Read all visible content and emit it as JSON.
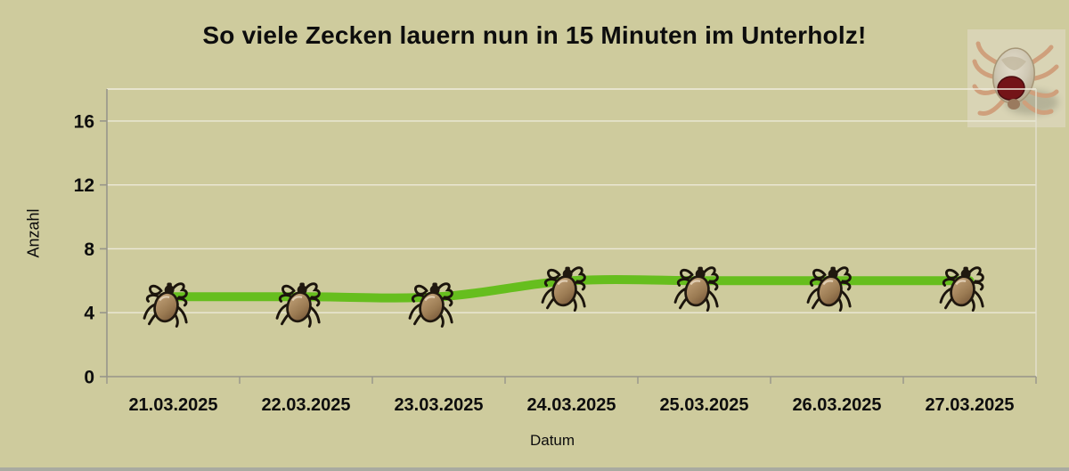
{
  "chart_data": {
    "type": "line",
    "title": "So viele Zecken lauern nun in 15 Minuten im Unterholz!",
    "categories": [
      "21.03.2025",
      "22.03.2025",
      "23.03.2025",
      "24.03.2025",
      "25.03.2025",
      "26.03.2025",
      "27.03.2025"
    ],
    "values": [
      5,
      5,
      5,
      6,
      6,
      6,
      6
    ],
    "xlabel": "Datum",
    "ylabel": "Anzahl",
    "ylim": [
      0,
      18
    ],
    "yticks": [
      0,
      4,
      8,
      12,
      16
    ],
    "grid": true,
    "legend_position": "none",
    "smoothed": true,
    "marker_icon": "tick-bug-icon",
    "line_color": "#66be1e"
  },
  "decor": {
    "corner_image": "tick-photo",
    "background_color": "#cecb9d",
    "gridline_color": "#ece9d8",
    "axis_color": "#97958a",
    "tick_label_color": "#0d0d0d"
  }
}
